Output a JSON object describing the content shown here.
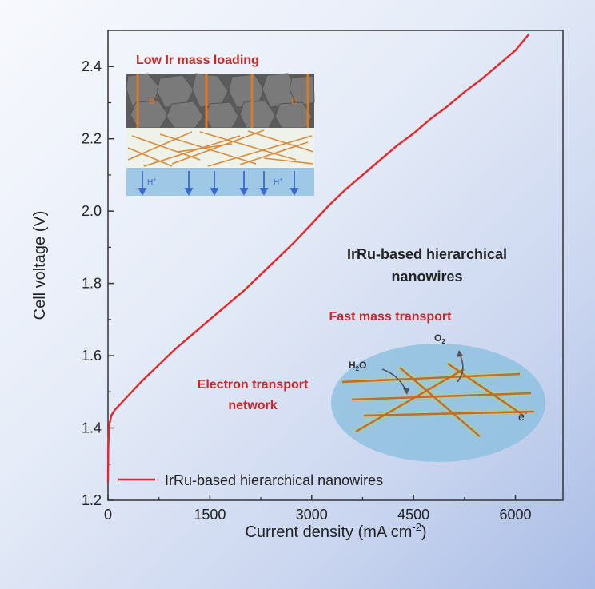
{
  "chart_data": {
    "type": "line",
    "xlabel_main": "Current density (mA cm",
    "xlabel_sup": "-2",
    "xlabel_close": ")",
    "ylabel": "Cell voltage (V)",
    "xlim": [
      0,
      6700
    ],
    "ylim": [
      1.2,
      2.5
    ],
    "xticks": [
      0,
      1500,
      3000,
      4500,
      6000
    ],
    "yticks": [
      1.2,
      1.4,
      1.6,
      1.8,
      2.0,
      2.2,
      2.4
    ],
    "ytick_labels": [
      "1.2",
      "1.4",
      "1.6",
      "1.8",
      "2.0",
      "2.2",
      "2.4"
    ],
    "grid": false,
    "legend_placement": "bottom-left",
    "series": [
      {
        "name": "IrRu-based hierarchical nanowires",
        "color": "#e8262a",
        "x": [
          0,
          5,
          20,
          50,
          100,
          200,
          300,
          500,
          750,
          1000,
          1250,
          1500,
          1750,
          2000,
          2250,
          2500,
          2750,
          3000,
          3250,
          3500,
          3750,
          4000,
          4250,
          4500,
          4750,
          5000,
          5250,
          5500,
          5750,
          6000,
          6200
        ],
        "y": [
          1.25,
          1.35,
          1.41,
          1.435,
          1.45,
          1.47,
          1.49,
          1.53,
          1.575,
          1.62,
          1.66,
          1.7,
          1.74,
          1.78,
          1.825,
          1.87,
          1.915,
          1.965,
          2.015,
          2.06,
          2.1,
          2.14,
          2.18,
          2.215,
          2.255,
          2.29,
          2.33,
          2.365,
          2.405,
          2.445,
          2.49
        ]
      }
    ]
  },
  "annotations": {
    "low_ir_title": "Low Ir mass loading",
    "electron_label_1": "e",
    "electron_label_2": "e",
    "electron_sup": "-",
    "proton_label_1": "H",
    "proton_label_2": "H",
    "proton_sup": "+",
    "hierarchical_title_line1": "IrRu-based hierarchical",
    "hierarchical_title_line2": "nanowires",
    "fast_mass_transport": "Fast mass transport",
    "electron_transport_line1": "Electron transport",
    "electron_transport_line2": "network",
    "o2_main": "O",
    "o2_sub": "2",
    "h2o_h": "H",
    "h2o_sub": "2",
    "h2o_o": "O",
    "nanowire_e": "e",
    "nanowire_e_sup": "-"
  },
  "colors": {
    "curve": "#e8262a",
    "annotation_red": "#c8282a",
    "ellipse": "#8fc1e0",
    "wire": "#d97a2a",
    "membrane": "#9fc7e6",
    "particle": "#6f6f6f"
  }
}
